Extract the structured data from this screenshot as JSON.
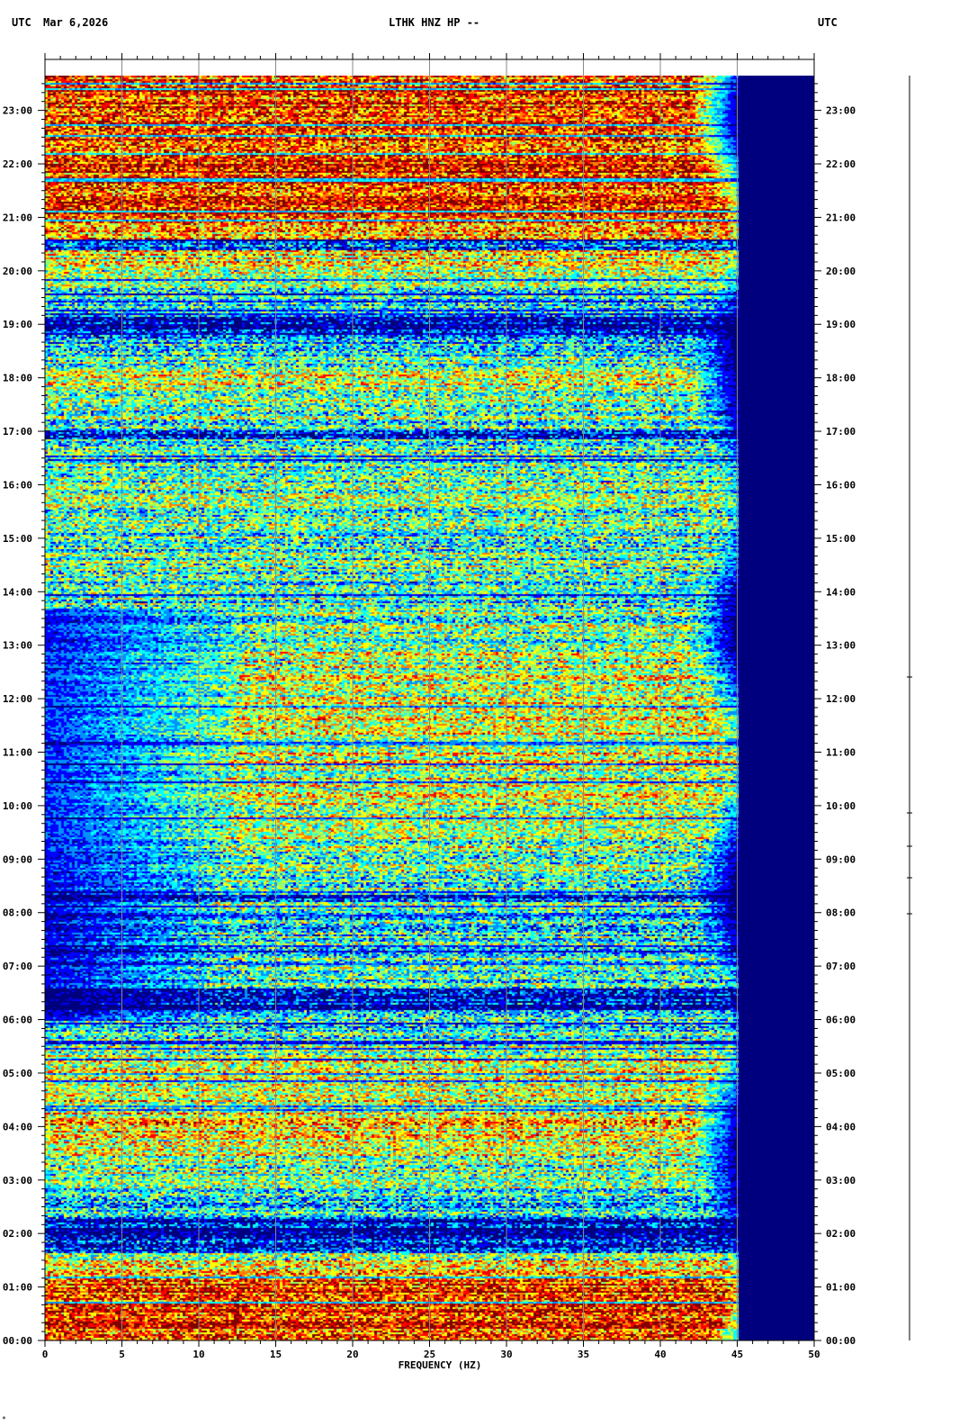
{
  "header": {
    "left_tz": "UTC",
    "date": "Mar 6,2026",
    "station": "LTHK HNZ HP --",
    "right_tz": "UTC"
  },
  "chart_data": {
    "type": "heatmap",
    "title": "LTHK HNZ HP --",
    "xlabel": "FREQUENCY (HZ)",
    "ylabel": "UTC",
    "x_ticks": [
      0,
      5,
      10,
      15,
      20,
      25,
      30,
      35,
      40,
      45,
      50
    ],
    "x_minor_step": 1,
    "xlim": [
      0,
      50
    ],
    "y_ticks": [
      "00:00",
      "01:00",
      "02:00",
      "03:00",
      "04:00",
      "05:00",
      "06:00",
      "07:00",
      "08:00",
      "09:00",
      "10:00",
      "11:00",
      "12:00",
      "13:00",
      "14:00",
      "15:00",
      "16:00",
      "17:00",
      "18:00",
      "19:00",
      "20:00",
      "21:00",
      "22:00",
      "23:00"
    ],
    "y_unit": "hours",
    "ylim": [
      0,
      23.65
    ],
    "grid": "vertical lines every 5 Hz",
    "colormap": [
      "#00007f",
      "#0000ff",
      "#0090ff",
      "#00ffff",
      "#90ff70",
      "#ffff00",
      "#ff8000",
      "#ff0000",
      "#800000"
    ],
    "frequency_rolloff_hz": 44,
    "activity_by_hour": [
      {
        "hour": 0,
        "level": 0.8
      },
      {
        "hour": 1,
        "level": 0.82
      },
      {
        "hour": 2,
        "level": 0.3
      },
      {
        "hour": 3,
        "level": 0.45
      },
      {
        "hour": 4,
        "level": 0.62
      },
      {
        "hour": 5,
        "level": 0.58
      },
      {
        "hour": 6,
        "level": 0.38
      },
      {
        "hour": 7,
        "level": 0.42
      },
      {
        "hour": 8,
        "level": 0.4
      },
      {
        "hour": 9,
        "level": 0.48
      },
      {
        "hour": 10,
        "level": 0.55
      },
      {
        "hour": 11,
        "level": 0.58
      },
      {
        "hour": 12,
        "level": 0.58
      },
      {
        "hour": 13,
        "level": 0.5
      },
      {
        "hour": 14,
        "level": 0.42
      },
      {
        "hour": 15,
        "level": 0.45
      },
      {
        "hour": 16,
        "level": 0.48
      },
      {
        "hour": 17,
        "level": 0.42
      },
      {
        "hour": 18,
        "level": 0.55
      },
      {
        "hour": 19,
        "level": 0.25
      },
      {
        "hour": 20,
        "level": 0.55
      },
      {
        "hour": 21,
        "level": 0.78
      },
      {
        "hour": 22,
        "level": 0.85
      },
      {
        "hour": 23,
        "level": 0.8
      }
    ],
    "quiet_bands_hours": [
      [
        1.65,
        2.3
      ],
      [
        6.2,
        6.6
      ],
      [
        8.2,
        8.35
      ],
      [
        16.85,
        17.05
      ],
      [
        18.9,
        19.15
      ],
      [
        20.4,
        20.6
      ]
    ],
    "low_freq_quiet_hours": [
      [
        6.0,
        13.7
      ]
    ]
  },
  "corner_mark": "*"
}
